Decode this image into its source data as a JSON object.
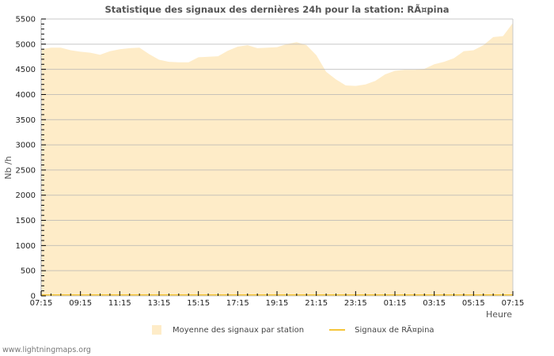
{
  "chart_data": {
    "type": "area",
    "title": "Statistique des signaux des dernières 24h pour la station: RÃ¤pina",
    "xlabel": "Heure",
    "ylabel": "Nb /h",
    "ylim": [
      0,
      5500
    ],
    "yticks": [
      0,
      500,
      1000,
      1500,
      2000,
      2500,
      3000,
      3500,
      4000,
      4500,
      5000,
      5500
    ],
    "xtick_labels": [
      "07:15",
      "09:15",
      "11:15",
      "13:15",
      "15:15",
      "17:15",
      "19:15",
      "21:15",
      "23:15",
      "01:15",
      "03:15",
      "05:15",
      "07:15"
    ],
    "grid": true,
    "legend_position": "bottom",
    "x": [
      "07:15",
      "07:45",
      "08:15",
      "08:45",
      "09:15",
      "09:45",
      "10:15",
      "10:45",
      "11:15",
      "11:45",
      "12:15",
      "12:45",
      "13:15",
      "13:45",
      "14:15",
      "14:45",
      "15:15",
      "15:45",
      "16:15",
      "16:45",
      "17:15",
      "17:45",
      "18:15",
      "18:45",
      "19:15",
      "19:45",
      "20:15",
      "20:45",
      "21:15",
      "21:45",
      "22:15",
      "22:45",
      "23:15",
      "23:45",
      "00:15",
      "00:45",
      "01:15",
      "01:45",
      "02:15",
      "02:45",
      "03:15",
      "03:45",
      "04:15",
      "04:45",
      "05:15",
      "05:45",
      "06:15",
      "06:45",
      "07:15"
    ],
    "series": [
      {
        "name": "Moyenne des signaux par station",
        "type": "area",
        "color": "#feecc8",
        "values": [
          4900,
          4930,
          4930,
          4880,
          4850,
          4830,
          4790,
          4860,
          4900,
          4920,
          4930,
          4800,
          4690,
          4650,
          4640,
          4640,
          4740,
          4750,
          4760,
          4870,
          4950,
          4980,
          4920,
          4930,
          4940,
          5000,
          5040,
          4980,
          4780,
          4450,
          4300,
          4180,
          4170,
          4200,
          4270,
          4400,
          4470,
          4490,
          4490,
          4510,
          4600,
          4650,
          4720,
          4860,
          4880,
          4980,
          5140,
          5160,
          5420
        ]
      },
      {
        "name": "Signaux de RÃ¤pina",
        "type": "line",
        "color": "#f5c53a",
        "values": [
          0,
          0,
          0,
          0,
          0,
          0,
          0,
          0,
          0,
          0,
          0,
          0,
          0,
          0,
          0,
          0,
          0,
          0,
          0,
          0,
          0,
          0,
          0,
          0,
          0,
          0,
          0,
          0,
          0,
          0,
          0,
          0,
          0,
          0,
          0,
          0,
          0,
          0,
          0,
          0,
          0,
          0,
          0,
          0,
          0,
          0,
          0,
          0,
          0
        ]
      }
    ]
  },
  "legend": {
    "area_label": "Moyenne des signaux par station",
    "line_label": "Signaux de RÃ¤pina"
  },
  "footer": "www.lightningmaps.org"
}
